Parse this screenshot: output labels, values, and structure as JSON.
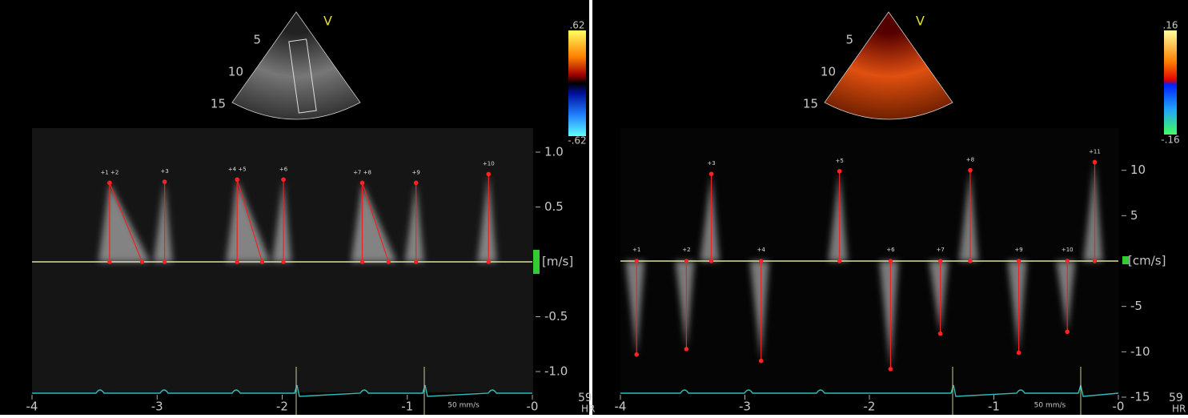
{
  "panels": [
    {
      "mode": "V",
      "depth_labels": [
        5,
        10,
        15
      ],
      "color_bar": {
        "top": {
          "value": 0.62,
          "label": ".62"
        },
        "bottom": {
          "value": -0.62,
          "label": "-.62"
        }
      },
      "unit": "[m/s]",
      "xlim": [
        -4,
        0
      ],
      "xticks": [
        -4,
        -3,
        -2,
        -1,
        {
          "value": 0,
          "label": "-0"
        }
      ],
      "ylim": [
        -1.2,
        1.2
      ],
      "yticks": [
        {
          "value": 1,
          "label": "1.0"
        },
        0.5,
        -0.5,
        {
          "value": -1,
          "label": "-1.0"
        }
      ],
      "sweep": "50 mm/s",
      "hr": "59",
      "hr_label": "HR",
      "measurements": [
        {
          "label": "+1 +2",
          "t": -3.38,
          "v": 0.72,
          "end_t": -3.12
        },
        {
          "label": "+3",
          "t": -2.94,
          "v": 0.73
        },
        {
          "label": "+4 +5",
          "t": -2.36,
          "v": 0.75,
          "end_t": -2.16
        },
        {
          "label": "+6",
          "t": -1.99,
          "v": 0.75
        },
        {
          "label": "+7 +8",
          "t": -1.36,
          "v": 0.72,
          "end_t": -1.15
        },
        {
          "label": "+9",
          "t": -0.93,
          "v": 0.72
        },
        {
          "label": "+10",
          "t": -0.35,
          "v": 0.8
        }
      ]
    },
    {
      "mode": "V",
      "depth_labels": [
        5,
        10,
        15
      ],
      "color_bar": {
        "top": {
          "value": 0.16,
          "label": ".16"
        },
        "bottom": {
          "value": -0.16,
          "label": "-.16"
        }
      },
      "unit": "[cm/s]",
      "xlim": [
        -4,
        0
      ],
      "xticks": [
        -4,
        -3,
        -2,
        -1,
        {
          "value": 0,
          "label": "-0"
        }
      ],
      "ylim": [
        -15,
        15
      ],
      "yticks": [
        10,
        5,
        -5,
        -10,
        -15
      ],
      "sweep": "50 mm/s",
      "hr": "59",
      "hr_label": "HR",
      "measurements": [
        {
          "label": "+1",
          "t": -3.87,
          "v": -10.3
        },
        {
          "label": "+2",
          "t": -3.47,
          "v": -9.7
        },
        {
          "label": "+3",
          "t": -3.27,
          "v": 9.6
        },
        {
          "label": "+4",
          "t": -2.87,
          "v": -11
        },
        {
          "label": "+5",
          "t": -2.24,
          "v": 9.9
        },
        {
          "label": "+6",
          "t": -1.83,
          "v": -11.9
        },
        {
          "label": "+7",
          "t": -1.43,
          "v": -8
        },
        {
          "label": "+8",
          "t": -1.19,
          "v": 10
        },
        {
          "label": "+9",
          "t": -0.8,
          "v": -10.1
        },
        {
          "label": "+10",
          "t": -0.41,
          "v": -7.8
        },
        {
          "label": "+11",
          "t": -0.19,
          "v": 10.9
        }
      ]
    }
  ]
}
